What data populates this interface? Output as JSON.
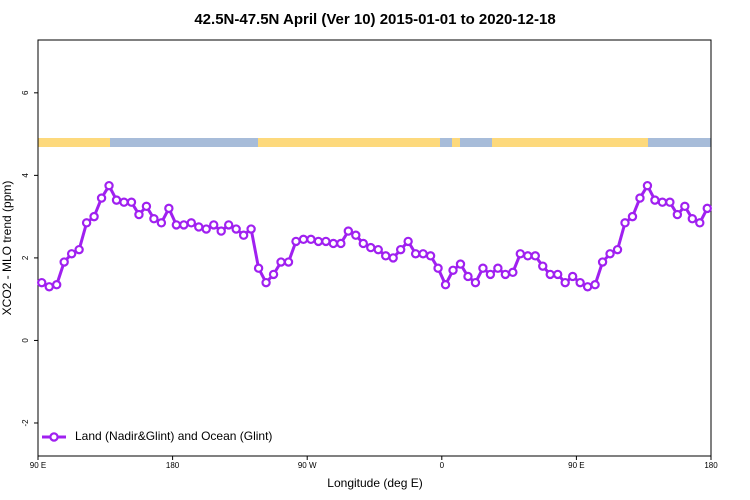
{
  "chart_data": {
    "type": "line",
    "title": "42.5N-47.5N April (Ver 10)   2015-01-01 to 2020-12-18",
    "x_label": "Longitude (deg E)",
    "y_label": "XCO2 - MLO trend (ppm)",
    "x": [
      92.5,
      97.5,
      102.5,
      107.5,
      112.5,
      117.5,
      122.5,
      127.5,
      132.5,
      137.5,
      142.5,
      147.5,
      152.5,
      157.5,
      162.5,
      167.5,
      172.5,
      177.5,
      182.5,
      187.5,
      192.5,
      197.5,
      202.5,
      207.5,
      212.5,
      217.5,
      222.5,
      227.5,
      232.5,
      237.5,
      242.5,
      247.5,
      252.5,
      257.5,
      262.5,
      267.5,
      272.5,
      277.5,
      282.5,
      287.5,
      292.5,
      297.5,
      302.5,
      307.5,
      312.5,
      317.5,
      322.5,
      327.5,
      332.5,
      337.5,
      342.5,
      347.5,
      352.5,
      357.5,
      362.5,
      367.5,
      372.5,
      377.5,
      382.5,
      387.5,
      392.5,
      397.5,
      402.5,
      407.5,
      412.5,
      417.5,
      422.5,
      427.5,
      432.5,
      437.5,
      442.5,
      447.5,
      452.5,
      457.5,
      462.5,
      467.5,
      472.5,
      477.5,
      482.5,
      487.5,
      492.5,
      497.5,
      502.5,
      507.5,
      512.5,
      517.5,
      522.5,
      527.5,
      532.5,
      537.5
    ],
    "series": [
      {
        "name": "Land (Nadir&Glint) and Ocean (Glint)",
        "color": "#a020f0",
        "values": [
          1.4,
          1.3,
          1.35,
          1.9,
          2.1,
          2.2,
          2.85,
          3.0,
          3.45,
          3.75,
          3.4,
          3.35,
          3.35,
          3.05,
          3.25,
          2.95,
          2.85,
          3.2,
          2.8,
          2.8,
          2.85,
          2.75,
          2.7,
          2.8,
          2.65,
          2.8,
          2.7,
          2.55,
          2.7,
          1.75,
          1.4,
          1.6,
          1.9,
          1.9,
          2.4,
          2.45,
          2.45,
          2.4,
          2.4,
          2.35,
          2.35,
          2.65,
          2.55,
          2.35,
          2.25,
          2.2,
          2.05,
          2.0,
          2.2,
          2.4,
          2.1,
          2.1,
          2.05,
          1.75,
          1.35,
          1.7,
          1.85,
          1.55,
          1.4,
          1.75,
          1.6,
          1.75,
          1.6,
          1.65,
          2.1,
          2.05,
          2.05,
          1.8,
          1.6,
          1.6,
          1.4,
          1.55,
          1.4,
          1.3,
          1.35,
          1.9,
          2.1,
          2.2,
          2.85,
          3.0,
          3.45,
          3.75,
          3.4,
          3.35,
          3.35,
          3.05,
          3.25,
          2.95,
          2.85,
          3.2
        ]
      }
    ],
    "xlim": [
      90,
      540
    ],
    "xticks": [
      {
        "value": 90,
        "label": "90 E"
      },
      180,
      {
        "value": 270,
        "label": "90 W"
      },
      {
        "value": 360,
        "label": "0"
      },
      {
        "value": 450,
        "label": "90 E"
      },
      {
        "value": 540,
        "label": "180"
      }
    ],
    "ylim": [
      -2.8,
      7.28
    ],
    "yticks": [
      -2,
      0,
      2,
      4,
      6
    ],
    "legend": "bottom-left"
  }
}
